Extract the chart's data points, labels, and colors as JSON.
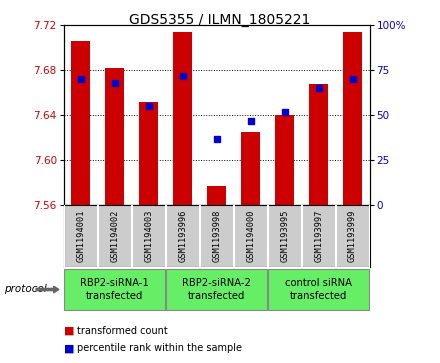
{
  "title": "GDS5355 / ILMN_1805221",
  "samples": [
    "GSM1194001",
    "GSM1194002",
    "GSM1194003",
    "GSM1193996",
    "GSM1193998",
    "GSM1194000",
    "GSM1193995",
    "GSM1193997",
    "GSM1193999"
  ],
  "red_values": [
    7.706,
    7.682,
    7.652,
    7.714,
    7.577,
    7.625,
    7.64,
    7.668,
    7.714
  ],
  "blue_pct": [
    70,
    68,
    55,
    72,
    37,
    47,
    52,
    65,
    70
  ],
  "ylim_left": [
    7.56,
    7.72
  ],
  "yticks_left": [
    7.56,
    7.6,
    7.64,
    7.68,
    7.72
  ],
  "yticks_right": [
    0,
    25,
    50,
    75,
    100
  ],
  "groups": [
    {
      "label": "RBP2-siRNA-1\ntransfected",
      "indices": [
        0,
        1,
        2
      ]
    },
    {
      "label": "RBP2-siRNA-2\ntransfected",
      "indices": [
        3,
        4,
        5
      ]
    },
    {
      "label": "control siRNA\ntransfected",
      "indices": [
        6,
        7,
        8
      ]
    }
  ],
  "bar_color": "#cc0000",
  "dot_color": "#0000cc",
  "bar_width": 0.55,
  "bar_bottom": 7.56,
  "protocol_label": "protocol",
  "legend_red": "transformed count",
  "legend_blue": "percentile rank within the sample",
  "background_color": "#ffffff",
  "grid_color": "#000000",
  "sample_box_color": "#cccccc",
  "green_color": "#66ee66",
  "title_fontsize": 10,
  "tick_fontsize": 7.5,
  "label_fontsize": 7
}
